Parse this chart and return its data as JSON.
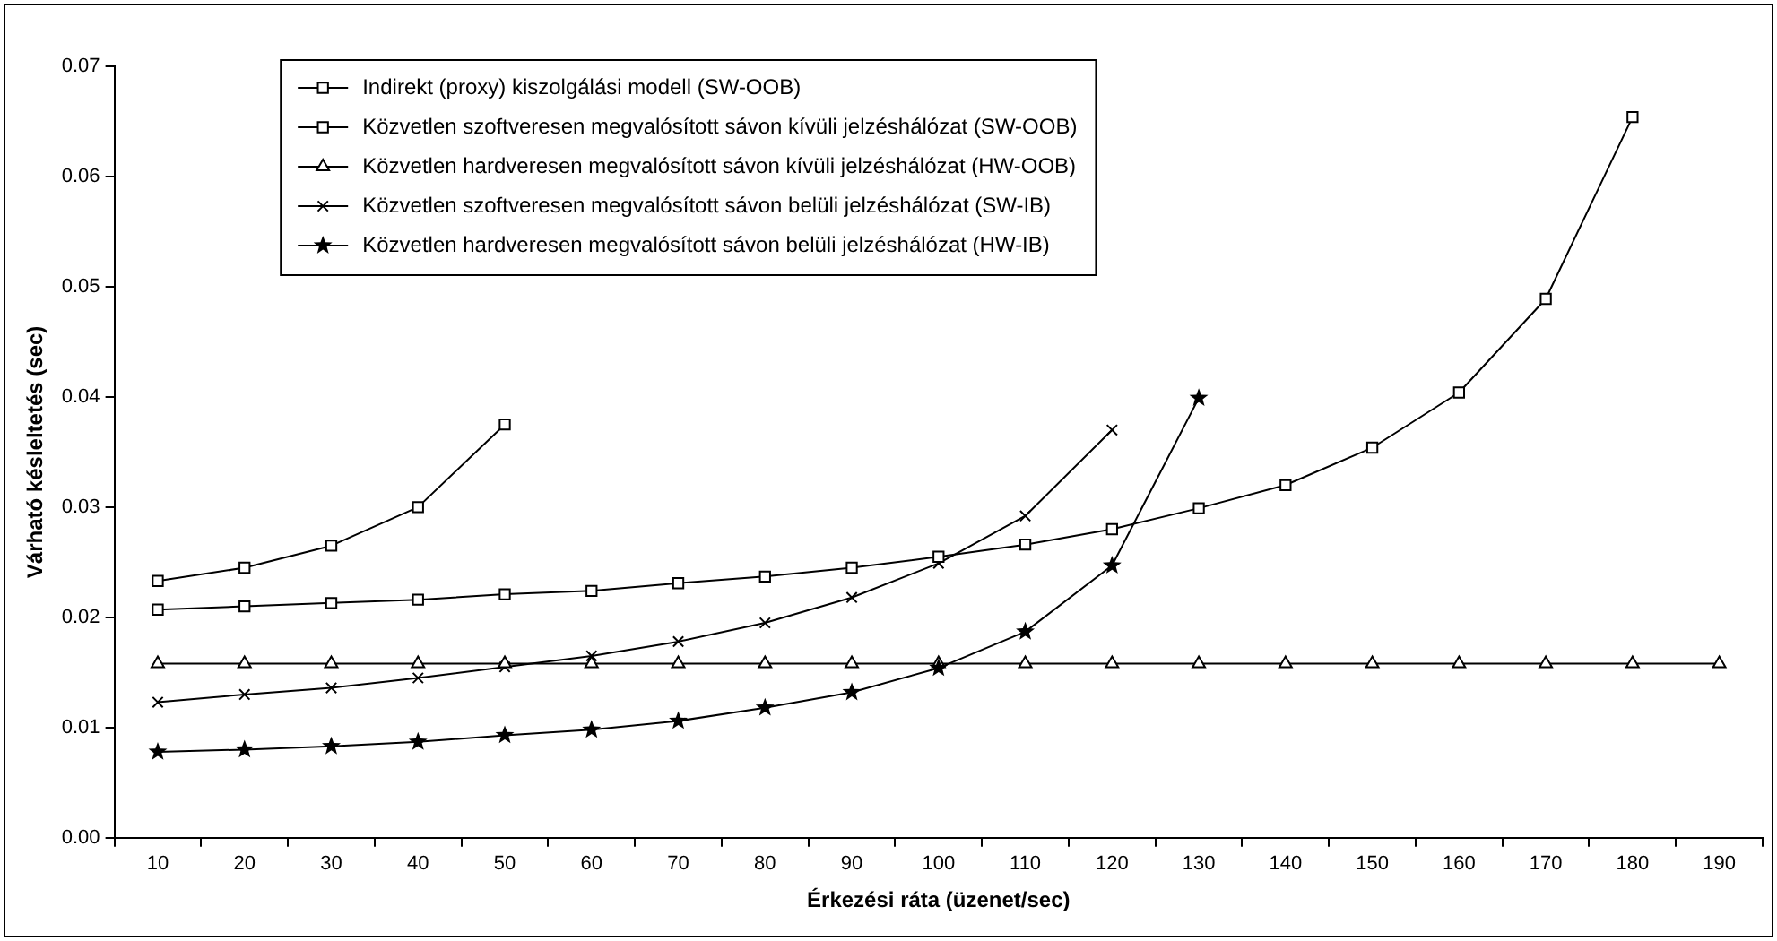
{
  "chart_data": {
    "type": "line",
    "xlabel": "Érkezési ráta (üzenet/sec)",
    "ylabel": "Várható késleltetés (sec)",
    "categories": [
      "10",
      "20",
      "30",
      "40",
      "50",
      "60",
      "70",
      "80",
      "90",
      "100",
      "110",
      "120",
      "130",
      "140",
      "150",
      "160",
      "170",
      "180",
      "190"
    ],
    "ylim": [
      0,
      0.07
    ],
    "yticks": [
      {
        "value": 0,
        "label": "0.00"
      },
      {
        "value": 0.01,
        "label": "0.01"
      },
      {
        "value": 0.02,
        "label": "0.02"
      },
      {
        "value": 0.03,
        "label": "0.03"
      },
      {
        "value": 0.04,
        "label": "0.04"
      },
      {
        "value": 0.05,
        "label": "0.05"
      },
      {
        "value": 0.06,
        "label": "0.06"
      },
      {
        "value": 0.07,
        "label": "0.07"
      }
    ],
    "grid": false,
    "legend": "top",
    "line_style": "solid",
    "series": [
      {
        "name": "Indirekt (proxy) kiszolgálási modell (SW-OOB)",
        "color": "#000000",
        "marker": "square",
        "values": [
          0.0233,
          0.0245,
          0.0265,
          0.03,
          0.0375,
          null,
          null,
          null,
          null,
          null,
          null,
          null,
          null,
          null,
          null,
          null,
          null,
          null,
          null
        ]
      },
      {
        "name": "Közvetlen szoftveresen megvalósított sávon kívüli jelzéshálózat (SW-OOB)",
        "color": "#000000",
        "marker": "square",
        "values": [
          0.0207,
          0.021,
          0.0213,
          0.0216,
          0.0221,
          0.0224,
          0.0231,
          0.0237,
          0.0245,
          0.0255,
          0.0266,
          0.028,
          0.0299,
          0.032,
          0.0354,
          0.0404,
          0.0489,
          0.0654,
          null
        ]
      },
      {
        "name": "Közvetlen hardveresen megvalósított sávon kívüli jelzéshálózat (HW-OOB)",
        "color": "#000000",
        "marker": "triangle",
        "values": [
          0.0158,
          0.0158,
          0.0158,
          0.0158,
          0.0158,
          0.0158,
          0.0158,
          0.0158,
          0.0158,
          0.0158,
          0.0158,
          0.0158,
          0.0158,
          0.0158,
          0.0158,
          0.0158,
          0.0158,
          0.0158,
          0.0158
        ]
      },
      {
        "name": "Közvetlen szoftveresen megvalósított sávon belüli jelzéshálózat (SW-IB)",
        "color": "#000000",
        "marker": "cross",
        "values": [
          0.0123,
          0.013,
          0.0136,
          0.0145,
          0.0155,
          0.0165,
          0.0178,
          0.0195,
          0.0218,
          0.0249,
          0.0292,
          0.037,
          null,
          null,
          null,
          null,
          null,
          null,
          null
        ]
      },
      {
        "name": "Közvetlen hardveresen megvalósított sávon belüli jelzéshálózat (HW-IB)",
        "color": "#000000",
        "marker": "star",
        "values": [
          0.0078,
          0.008,
          0.0083,
          0.0087,
          0.0093,
          0.0098,
          0.0106,
          0.0118,
          0.0132,
          0.0154,
          0.0187,
          0.0247,
          0.0399,
          null,
          null,
          null,
          null,
          null,
          null
        ]
      }
    ]
  }
}
